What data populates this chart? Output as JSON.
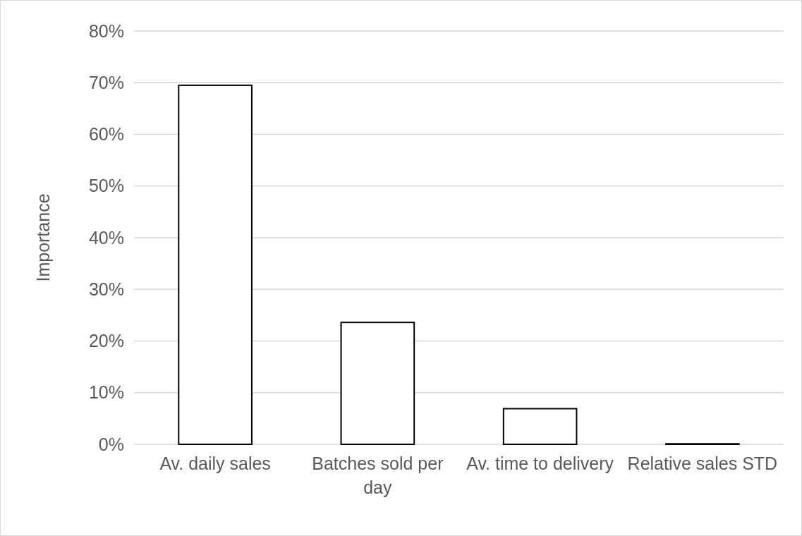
{
  "chart_data": {
    "type": "bar",
    "ylabel": "Importance",
    "categories": [
      "Av. daily sales",
      "Batches sold per day",
      "Av. time to delivery",
      "Relative sales STD"
    ],
    "values": [
      69.5,
      23.6,
      6.9,
      0.1
    ],
    "color": "#ffffff",
    "ylim": [
      0,
      80
    ],
    "yticks": [
      {
        "value": 0,
        "label": "0%"
      },
      {
        "value": 10,
        "label": "10%"
      },
      {
        "value": 20,
        "label": "20%"
      },
      {
        "value": 30,
        "label": "30%"
      },
      {
        "value": 40,
        "label": "40%"
      },
      {
        "value": 50,
        "label": "50%"
      },
      {
        "value": 60,
        "label": "60%"
      },
      {
        "value": 70,
        "label": "70%"
      },
      {
        "value": 80,
        "label": "80%"
      }
    ],
    "grid": "y"
  }
}
